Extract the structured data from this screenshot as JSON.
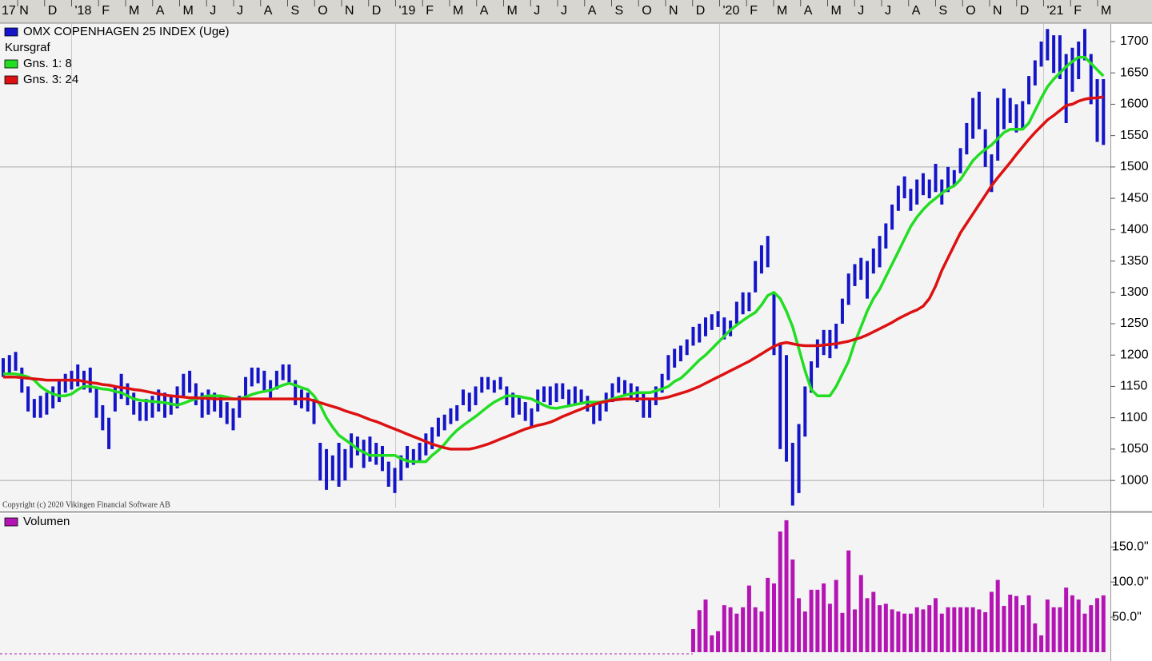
{
  "chart_data": [
    {
      "type": "hilo",
      "subtitle": "Kursgraf",
      "copyright": "Copyright (c) 2020 Vikingen Financial Software AB",
      "months": [
        "17 N",
        "D",
        "'18",
        "F",
        "M",
        "A",
        "M",
        "J",
        "J",
        "A",
        "S",
        "O",
        "N",
        "D",
        "'19",
        "F",
        "M",
        "A",
        "M",
        "J",
        "J",
        "A",
        "S",
        "O",
        "N",
        "D",
        "'20",
        "F",
        "M",
        "A",
        "M",
        "J",
        "J",
        "A",
        "S",
        "O",
        "N",
        "D",
        "'21",
        "F",
        "M"
      ],
      "ylim": [
        953,
        1728
      ],
      "yticks": [
        1000,
        1050,
        1100,
        1150,
        1200,
        1250,
        1300,
        1350,
        1400,
        1450,
        1500,
        1550,
        1600,
        1650,
        1700
      ],
      "ygrid": [
        1000,
        1500
      ],
      "series": [
        {
          "name": "OMX COPENHAGEN 25 INDEX (Uge)",
          "color": "#1414c8",
          "type": "hilo",
          "low": [
            1165,
            1170,
            1175,
            1140,
            1110,
            1100,
            1100,
            1105,
            1115,
            1125,
            1140,
            1145,
            1150,
            1145,
            1140,
            1100,
            1080,
            1050,
            1110,
            1130,
            1120,
            1105,
            1095,
            1095,
            1100,
            1110,
            1100,
            1105,
            1115,
            1135,
            1140,
            1120,
            1100,
            1105,
            1110,
            1100,
            1090,
            1080,
            1100,
            1130,
            1150,
            1155,
            1140,
            1130,
            1145,
            1160,
            1155,
            1120,
            1115,
            1110,
            1090,
            1000,
            985,
            1000,
            990,
            1000,
            1020,
            1040,
            1020,
            1030,
            1025,
            1015,
            990,
            980,
            1000,
            1020,
            1025,
            1030,
            1040,
            1050,
            1070,
            1080,
            1090,
            1095,
            1120,
            1110,
            1120,
            1140,
            1145,
            1140,
            1145,
            1120,
            1100,
            1105,
            1095,
            1085,
            1110,
            1125,
            1120,
            1125,
            1130,
            1120,
            1120,
            1125,
            1110,
            1090,
            1095,
            1110,
            1125,
            1140,
            1135,
            1130,
            1125,
            1100,
            1100,
            1120,
            1140,
            1160,
            1180,
            1190,
            1200,
            1215,
            1220,
            1230,
            1240,
            1245,
            1225,
            1230,
            1250,
            1265,
            1270,
            1300,
            1330,
            1340,
            1200,
            1050,
            1030,
            960,
            980,
            1070,
            1140,
            1180,
            1200,
            1195,
            1210,
            1250,
            1280,
            1310,
            1320,
            1290,
            1330,
            1340,
            1370,
            1400,
            1430,
            1450,
            1430,
            1440,
            1455,
            1450,
            1460,
            1440,
            1460,
            1470,
            1490,
            1520,
            1545,
            1560,
            1500,
            1460,
            1510,
            1560,
            1570,
            1555,
            1560,
            1600,
            1630,
            1660,
            1670,
            1650,
            1640,
            1570,
            1620,
            1640,
            1670,
            1600,
            1540,
            1535
          ],
          "high": [
            1195,
            1200,
            1205,
            1180,
            1150,
            1130,
            1135,
            1140,
            1150,
            1160,
            1170,
            1175,
            1185,
            1175,
            1180,
            1150,
            1120,
            1100,
            1150,
            1170,
            1155,
            1140,
            1125,
            1130,
            1135,
            1145,
            1140,
            1135,
            1150,
            1170,
            1175,
            1155,
            1140,
            1145,
            1140,
            1135,
            1125,
            1115,
            1135,
            1165,
            1180,
            1180,
            1175,
            1160,
            1175,
            1185,
            1185,
            1160,
            1145,
            1140,
            1130,
            1060,
            1050,
            1040,
            1060,
            1050,
            1075,
            1070,
            1065,
            1070,
            1060,
            1055,
            1030,
            1020,
            1040,
            1055,
            1050,
            1060,
            1075,
            1085,
            1100,
            1105,
            1115,
            1120,
            1145,
            1140,
            1150,
            1165,
            1165,
            1160,
            1165,
            1150,
            1140,
            1135,
            1125,
            1115,
            1145,
            1150,
            1150,
            1155,
            1155,
            1145,
            1150,
            1145,
            1135,
            1120,
            1125,
            1140,
            1155,
            1165,
            1160,
            1155,
            1150,
            1140,
            1130,
            1150,
            1170,
            1200,
            1210,
            1215,
            1225,
            1245,
            1250,
            1260,
            1265,
            1270,
            1260,
            1255,
            1285,
            1300,
            1300,
            1350,
            1375,
            1390,
            1300,
            1220,
            1200,
            1060,
            1090,
            1150,
            1190,
            1225,
            1240,
            1240,
            1250,
            1290,
            1330,
            1345,
            1355,
            1350,
            1370,
            1390,
            1410,
            1440,
            1470,
            1485,
            1465,
            1480,
            1490,
            1480,
            1505,
            1480,
            1500,
            1495,
            1530,
            1570,
            1610,
            1620,
            1560,
            1520,
            1610,
            1625,
            1610,
            1600,
            1605,
            1645,
            1670,
            1700,
            1720,
            1710,
            1710,
            1680,
            1690,
            1700,
            1720,
            1680,
            1640,
            1640
          ]
        },
        {
          "name": "Gns. 1: 8",
          "color": "#22dd22",
          "type": "line",
          "values": [
            1170,
            1170,
            1170,
            1168,
            1165,
            1160,
            1150,
            1143,
            1138,
            1135,
            1135,
            1138,
            1145,
            1150,
            1150,
            1148,
            1146,
            1145,
            1142,
            1140,
            1135,
            1130,
            1128,
            1127,
            1126,
            1125,
            1124,
            1122,
            1120,
            1123,
            1127,
            1130,
            1133,
            1135,
            1135,
            1135,
            1133,
            1130,
            1130,
            1133,
            1137,
            1140,
            1142,
            1144,
            1148,
            1152,
            1155,
            1152,
            1148,
            1145,
            1135,
            1120,
            1100,
            1085,
            1072,
            1065,
            1058,
            1050,
            1045,
            1040,
            1040,
            1040,
            1040,
            1040,
            1035,
            1031,
            1030,
            1030,
            1030,
            1040,
            1048,
            1058,
            1070,
            1080,
            1088,
            1095,
            1102,
            1110,
            1118,
            1125,
            1130,
            1135,
            1135,
            1134,
            1132,
            1130,
            1125,
            1120,
            1116,
            1115,
            1117,
            1119,
            1121,
            1123,
            1125,
            1125,
            1125,
            1127,
            1130,
            1133,
            1136,
            1138,
            1140,
            1140,
            1140,
            1143,
            1146,
            1150,
            1158,
            1163,
            1172,
            1182,
            1192,
            1200,
            1210,
            1220,
            1230,
            1240,
            1248,
            1255,
            1262,
            1268,
            1280,
            1295,
            1300,
            1290,
            1270,
            1245,
            1210,
            1175,
            1145,
            1135,
            1135,
            1135,
            1150,
            1170,
            1190,
            1220,
            1245,
            1270,
            1290,
            1305,
            1325,
            1345,
            1365,
            1385,
            1405,
            1420,
            1432,
            1442,
            1450,
            1458,
            1465,
            1470,
            1480,
            1495,
            1510,
            1520,
            1528,
            1535,
            1545,
            1555,
            1560,
            1560,
            1560,
            1570,
            1590,
            1610,
            1628,
            1640,
            1650,
            1660,
            1668,
            1675,
            1675,
            1665,
            1655,
            1645
          ]
        },
        {
          "name": "Gns. 3: 24",
          "color": "#dd1111",
          "type": "line",
          "values": [
            1165,
            1165,
            1165,
            1164,
            1163,
            1162,
            1161,
            1160,
            1160,
            1160,
            1160,
            1160,
            1160,
            1158,
            1156,
            1155,
            1153,
            1152,
            1150,
            1148,
            1147,
            1145,
            1144,
            1142,
            1140,
            1138,
            1136,
            1135,
            1134,
            1133,
            1132,
            1132,
            1131,
            1131,
            1130,
            1130,
            1130,
            1130,
            1130,
            1130,
            1130,
            1130,
            1130,
            1130,
            1130,
            1130,
            1130,
            1130,
            1130,
            1130,
            1127,
            1124,
            1121,
            1118,
            1115,
            1111,
            1108,
            1105,
            1101,
            1097,
            1094,
            1090,
            1086,
            1082,
            1078,
            1074,
            1070,
            1066,
            1062,
            1058,
            1055,
            1052,
            1050,
            1050,
            1050,
            1050,
            1052,
            1055,
            1058,
            1062,
            1066,
            1070,
            1074,
            1078,
            1082,
            1085,
            1088,
            1090,
            1093,
            1097,
            1102,
            1106,
            1110,
            1114,
            1118,
            1121,
            1124,
            1126,
            1128,
            1129,
            1130,
            1130,
            1130,
            1130,
            1130,
            1130,
            1131,
            1133,
            1136,
            1139,
            1142,
            1146,
            1150,
            1155,
            1160,
            1165,
            1170,
            1175,
            1180,
            1185,
            1190,
            1196,
            1202,
            1208,
            1214,
            1218,
            1220,
            1218,
            1216,
            1215,
            1215,
            1215,
            1216,
            1217,
            1218,
            1220,
            1222,
            1225,
            1228,
            1232,
            1237,
            1242,
            1247,
            1252,
            1258,
            1263,
            1268,
            1272,
            1278,
            1290,
            1310,
            1335,
            1355,
            1375,
            1395,
            1410,
            1425,
            1440,
            1455,
            1470,
            1483,
            1495,
            1507,
            1520,
            1532,
            1544,
            1555,
            1565,
            1575,
            1582,
            1590,
            1598,
            1600,
            1605,
            1608,
            1610,
            1610,
            1612
          ]
        }
      ]
    },
    {
      "type": "bar",
      "ylim": [
        0,
        197
      ],
      "yticks": [
        {
          "value": 50,
          "label": "50.0\""
        },
        {
          "value": 100,
          "label": "100.0\""
        },
        {
          "value": 150,
          "label": "150.0\""
        }
      ],
      "series": [
        {
          "name": "Volumen",
          "color": "#b414b4",
          "values": [
            null,
            null,
            null,
            null,
            null,
            null,
            null,
            null,
            null,
            null,
            null,
            null,
            null,
            null,
            null,
            null,
            null,
            null,
            null,
            null,
            null,
            null,
            null,
            null,
            null,
            null,
            null,
            null,
            null,
            null,
            null,
            null,
            null,
            null,
            null,
            null,
            null,
            null,
            null,
            null,
            null,
            null,
            null,
            null,
            null,
            null,
            null,
            null,
            null,
            null,
            null,
            null,
            null,
            null,
            null,
            null,
            null,
            null,
            null,
            null,
            null,
            null,
            null,
            null,
            null,
            null,
            null,
            null,
            null,
            null,
            null,
            null,
            null,
            null,
            null,
            null,
            null,
            null,
            null,
            null,
            null,
            null,
            null,
            null,
            null,
            null,
            null,
            null,
            null,
            null,
            null,
            null,
            null,
            null,
            null,
            null,
            null,
            null,
            null,
            null,
            null,
            null,
            null,
            null,
            null,
            null,
            null,
            null,
            null,
            null,
            null,
            33,
            60,
            75,
            24,
            30,
            67,
            64,
            55,
            64,
            95,
            64,
            58,
            106,
            98,
            172,
            188,
            132,
            77,
            58,
            89,
            89,
            98,
            69,
            103,
            56,
            145,
            61,
            110,
            77,
            86,
            67,
            69,
            61,
            58,
            55,
            55,
            64,
            61,
            67,
            77,
            55,
            64,
            64,
            64,
            64,
            64,
            61,
            57,
            86,
            103,
            66,
            82,
            80,
            67,
            81,
            41,
            24,
            75,
            64,
            64,
            92,
            81,
            75,
            55,
            67,
            77,
            81
          ]
        }
      ]
    }
  ]
}
